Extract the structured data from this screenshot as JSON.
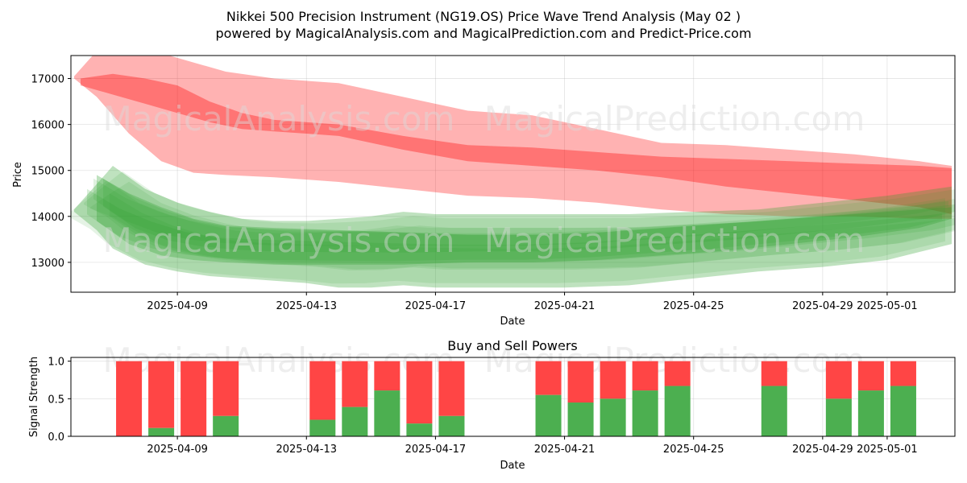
{
  "header": {
    "title_line1": "Nikkei 500 Precision Instrument (NG19.OS) Price Wave Trend Analysis (May 02 )",
    "title_line2": "powered by MagicalAnalysis.com and MagicalPrediction.com and Predict-Price.com"
  },
  "watermarks": {
    "left": "MagicalAnalysis.com",
    "right": "MagicalPrediction.com"
  },
  "colors": {
    "red_band": "#ff0000",
    "green_band": "#2ca02c",
    "buy_bar": "#4caf50",
    "sell_bar": "#ff4545"
  },
  "chart_data": [
    {
      "type": "area",
      "title": "Nikkei 500 Precision Instrument (NG19.OS) Price Wave Trend Analysis (May 02 )",
      "xlabel": "Date",
      "ylabel": "Price",
      "xlim_days": [
        -3.3,
        24.1
      ],
      "ylim": [
        12350,
        17500
      ],
      "x_tick_labels": [
        "2025-04-09",
        "2025-04-13",
        "2025-04-17",
        "2025-04-21",
        "2025-04-25",
        "2025-04-29",
        "2025-05-01"
      ],
      "x_tick_days": [
        0,
        4,
        8,
        12,
        16,
        20,
        22
      ],
      "y_ticks": [
        13000,
        14000,
        15000,
        16000,
        17000
      ],
      "grid": true,
      "series": [
        {
          "name": "Red wave band (wide)",
          "color": "red",
          "x_days": [
            -3.2,
            -2.5,
            -1.5,
            -0.5,
            0.5,
            1.5,
            3,
            4,
            5,
            7,
            9,
            11,
            13,
            15,
            17,
            19,
            21,
            23,
            24
          ],
          "upper": [
            17050,
            17600,
            17700,
            17550,
            17350,
            17150,
            17000,
            16950,
            16900,
            16600,
            16300,
            16200,
            15900,
            15600,
            15550,
            15450,
            15350,
            15200,
            15100
          ],
          "lower": [
            17000,
            16600,
            15800,
            15200,
            14950,
            14900,
            14850,
            14800,
            14750,
            14600,
            14450,
            14400,
            14300,
            14150,
            14050,
            14000,
            14000,
            13950,
            13950
          ]
        },
        {
          "name": "Red wave band (core)",
          "color": "red",
          "x_days": [
            -3,
            -2,
            -1,
            0,
            1,
            2,
            3,
            4,
            5,
            7,
            9,
            11,
            13,
            15,
            17,
            19,
            21,
            23,
            24
          ],
          "upper": [
            17000,
            17100,
            17000,
            16850,
            16500,
            16250,
            16100,
            16050,
            16000,
            15750,
            15550,
            15500,
            15400,
            15300,
            15250,
            15200,
            15150,
            15100,
            15050
          ],
          "lower": [
            16850,
            16650,
            16450,
            16250,
            16050,
            15900,
            15850,
            15800,
            15750,
            15450,
            15200,
            15100,
            15000,
            14850,
            14650,
            14500,
            14350,
            14200,
            14050
          ]
        },
        {
          "name": "Green wave band (wide)",
          "color": "green",
          "x_days": [
            -3.2,
            -2.5,
            -2,
            -1,
            0,
            1,
            2,
            3,
            4,
            5,
            6,
            7,
            8,
            10,
            12,
            14,
            16,
            18,
            20,
            22,
            24
          ],
          "upper": [
            14150,
            14700,
            15100,
            14600,
            14300,
            14100,
            13950,
            13900,
            13900,
            13950,
            14000,
            14100,
            14050,
            14050,
            14050,
            14050,
            14100,
            14150,
            14300,
            14450,
            14650
          ],
          "lower": [
            14100,
            13700,
            13300,
            12950,
            12800,
            12700,
            12650,
            12600,
            12550,
            12450,
            12450,
            12500,
            12450,
            12450,
            12450,
            12500,
            12650,
            12800,
            12900,
            13050,
            13400
          ]
        },
        {
          "name": "Green wave band (core)",
          "color": "green",
          "x_days": [
            -2.5,
            -1.5,
            -0.5,
            0.5,
            1.5,
            3,
            5,
            7,
            9,
            11,
            13,
            15,
            17,
            19,
            21,
            23,
            24
          ],
          "upper": [
            14900,
            14500,
            14200,
            13950,
            13800,
            13750,
            13700,
            13650,
            13600,
            13600,
            13650,
            13750,
            13850,
            13950,
            14050,
            14150,
            14200
          ],
          "lower": [
            13900,
            13400,
            13150,
            13050,
            13000,
            12950,
            12950,
            12950,
            13000,
            13000,
            13050,
            13150,
            13250,
            13400,
            13550,
            13750,
            13950
          ]
        }
      ]
    },
    {
      "type": "bar",
      "title": "Buy and Sell Powers",
      "xlabel": "Date",
      "ylabel": "Signal Strength",
      "ylim": [
        0,
        1.05
      ],
      "y_ticks": [
        "0.0",
        "0.5",
        "1.0"
      ],
      "x_tick_labels": [
        "2025-04-09",
        "2025-04-13",
        "2025-04-17",
        "2025-04-21",
        "2025-04-25",
        "2025-04-29",
        "2025-05-01"
      ],
      "x_tick_days": [
        0,
        4,
        8,
        12,
        16,
        20,
        22
      ],
      "xlim_days": [
        -3.3,
        24.1
      ],
      "grid": true,
      "categories_days": [
        -1.5,
        -0.5,
        0.5,
        1.5,
        4.5,
        5.5,
        6.5,
        7.5,
        8.5,
        11.5,
        12.5,
        13.5,
        14.5,
        15.5,
        18.5,
        20.5,
        21.5,
        22.5
      ],
      "series": [
        {
          "name": "Buy",
          "values": [
            0.0,
            0.11,
            0.0,
            0.27,
            0.22,
            0.39,
            0.61,
            0.17,
            0.27,
            0.55,
            0.45,
            0.5,
            0.61,
            0.67,
            0.67,
            0.5,
            0.61,
            0.67
          ]
        },
        {
          "name": "Sell",
          "values": [
            1.0,
            0.89,
            1.0,
            0.73,
            0.78,
            0.61,
            0.39,
            0.83,
            0.73,
            0.45,
            0.55,
            0.5,
            0.39,
            0.33,
            0.33,
            0.5,
            0.39,
            0.33
          ]
        }
      ]
    }
  ]
}
